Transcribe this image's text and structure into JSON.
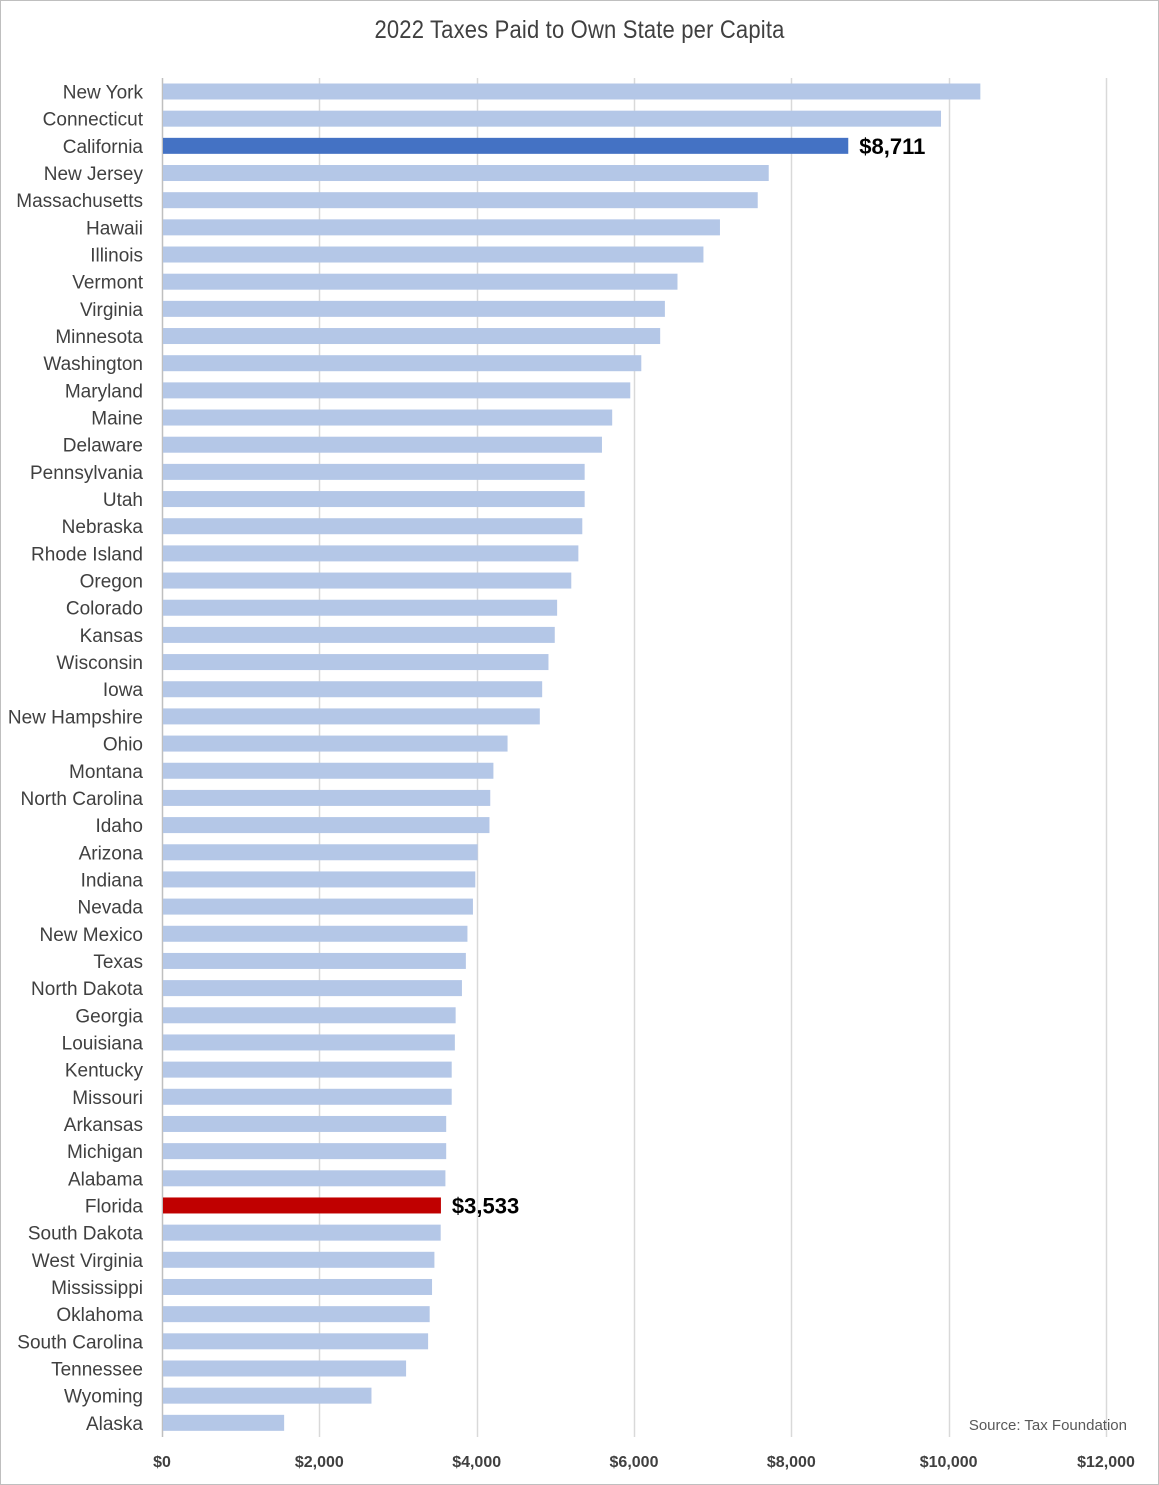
{
  "chart_data": {
    "type": "bar",
    "orientation": "horizontal",
    "title": "2022 Taxes Paid to Own State per Capita",
    "xlabel": "",
    "ylabel": "",
    "xlim": [
      0,
      12000
    ],
    "x_ticks": [
      0,
      2000,
      4000,
      6000,
      8000,
      10000,
      12000
    ],
    "x_tick_labels": [
      "$0",
      "$2,000",
      "$4,000",
      "$6,000",
      "$8,000",
      "$10,000",
      "$12,000"
    ],
    "grid": "vertical",
    "legend": "none",
    "categories": [
      "New York",
      "Connecticut",
      "California",
      "New Jersey",
      "Massachusetts",
      "Hawaii",
      "Illinois",
      "Vermont",
      "Virginia",
      "Minnesota",
      "Washington",
      "Maryland",
      "Maine",
      "Delaware",
      "Pennsylvania",
      "Utah",
      "Nebraska",
      "Rhode Island",
      "Oregon",
      "Colorado",
      "Kansas",
      "Wisconsin",
      "Iowa",
      "New Hampshire",
      "Ohio",
      "Montana",
      "North Carolina",
      "Idaho",
      "Arizona",
      "Indiana",
      "Nevada",
      "New Mexico",
      "Texas",
      "North Dakota",
      "Georgia",
      "Louisiana",
      "Kentucky",
      "Missouri",
      "Arkansas",
      "Michigan",
      "Alabama",
      "Florida",
      "South Dakota",
      "West Virginia",
      "Mississippi",
      "Oklahoma",
      "South Carolina",
      "Tennessee",
      "Wyoming",
      "Alaska"
    ],
    "values": [
      10390,
      9890,
      8711,
      7700,
      7560,
      7080,
      6870,
      6540,
      6380,
      6320,
      6080,
      5940,
      5710,
      5580,
      5360,
      5360,
      5330,
      5280,
      5190,
      5010,
      4980,
      4900,
      4820,
      4790,
      4380,
      4200,
      4160,
      4150,
      4000,
      3970,
      3940,
      3870,
      3850,
      3800,
      3720,
      3710,
      3670,
      3670,
      3600,
      3600,
      3590,
      3533,
      3530,
      3450,
      3420,
      3390,
      3370,
      3090,
      2650,
      1540
    ],
    "highlights": [
      {
        "category": "California",
        "color": "#4472c4",
        "label": "$8,711"
      },
      {
        "category": "Florida",
        "color": "#c00000",
        "label": "$3,533"
      }
    ],
    "bar_color": "#b4c7e7",
    "grid_color": "#d9d9d9"
  },
  "source_note": "Source: Tax Foundation"
}
